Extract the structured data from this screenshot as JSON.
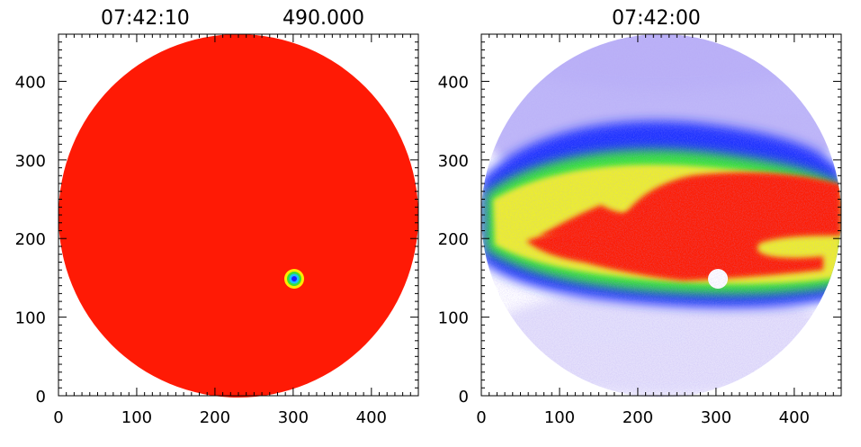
{
  "panels": {
    "left": {
      "title_left": "07:42:10",
      "title_right": "490.000"
    },
    "right": {
      "title": "07:42:00"
    }
  },
  "colors": {
    "disk_red": "#ff1a05",
    "aurora_purple": "#7f6cf0",
    "aurora_blue": "#1d30ff",
    "aurora_green": "#35e635",
    "aurora_yellow": "#eef02a",
    "white": "#ffffff"
  },
  "chart_data": [
    {
      "type": "heatmap",
      "title_left": "07:42:10",
      "title_right": "490.000",
      "xlabel": "",
      "ylabel": "",
      "xlim": [
        0,
        460
      ],
      "ylim": [
        0,
        460
      ],
      "xticks": [
        0,
        100,
        200,
        300,
        400
      ],
      "yticks": [
        0,
        100,
        200,
        300,
        400
      ],
      "disk": {
        "center": [
          230,
          230
        ],
        "radius": 228,
        "color": "disk_red"
      },
      "spot": {
        "x": 302,
        "y": 151,
        "ring_colors": [
          "#ffea00",
          "#37e037",
          "#1abfff",
          "#1a20ff"
        ]
      }
    },
    {
      "type": "heatmap",
      "title": "07:42:00",
      "xlabel": "",
      "ylabel": "",
      "xlim": [
        0,
        460
      ],
      "ylim": [
        0,
        460
      ],
      "xticks": [
        0,
        100,
        200,
        300,
        400
      ],
      "yticks": [
        0,
        100,
        200,
        300,
        400
      ],
      "disk": {
        "center": [
          230,
          230
        ],
        "radius": 228
      },
      "occulted_spot": {
        "x": 302,
        "y": 149
      }
    }
  ]
}
